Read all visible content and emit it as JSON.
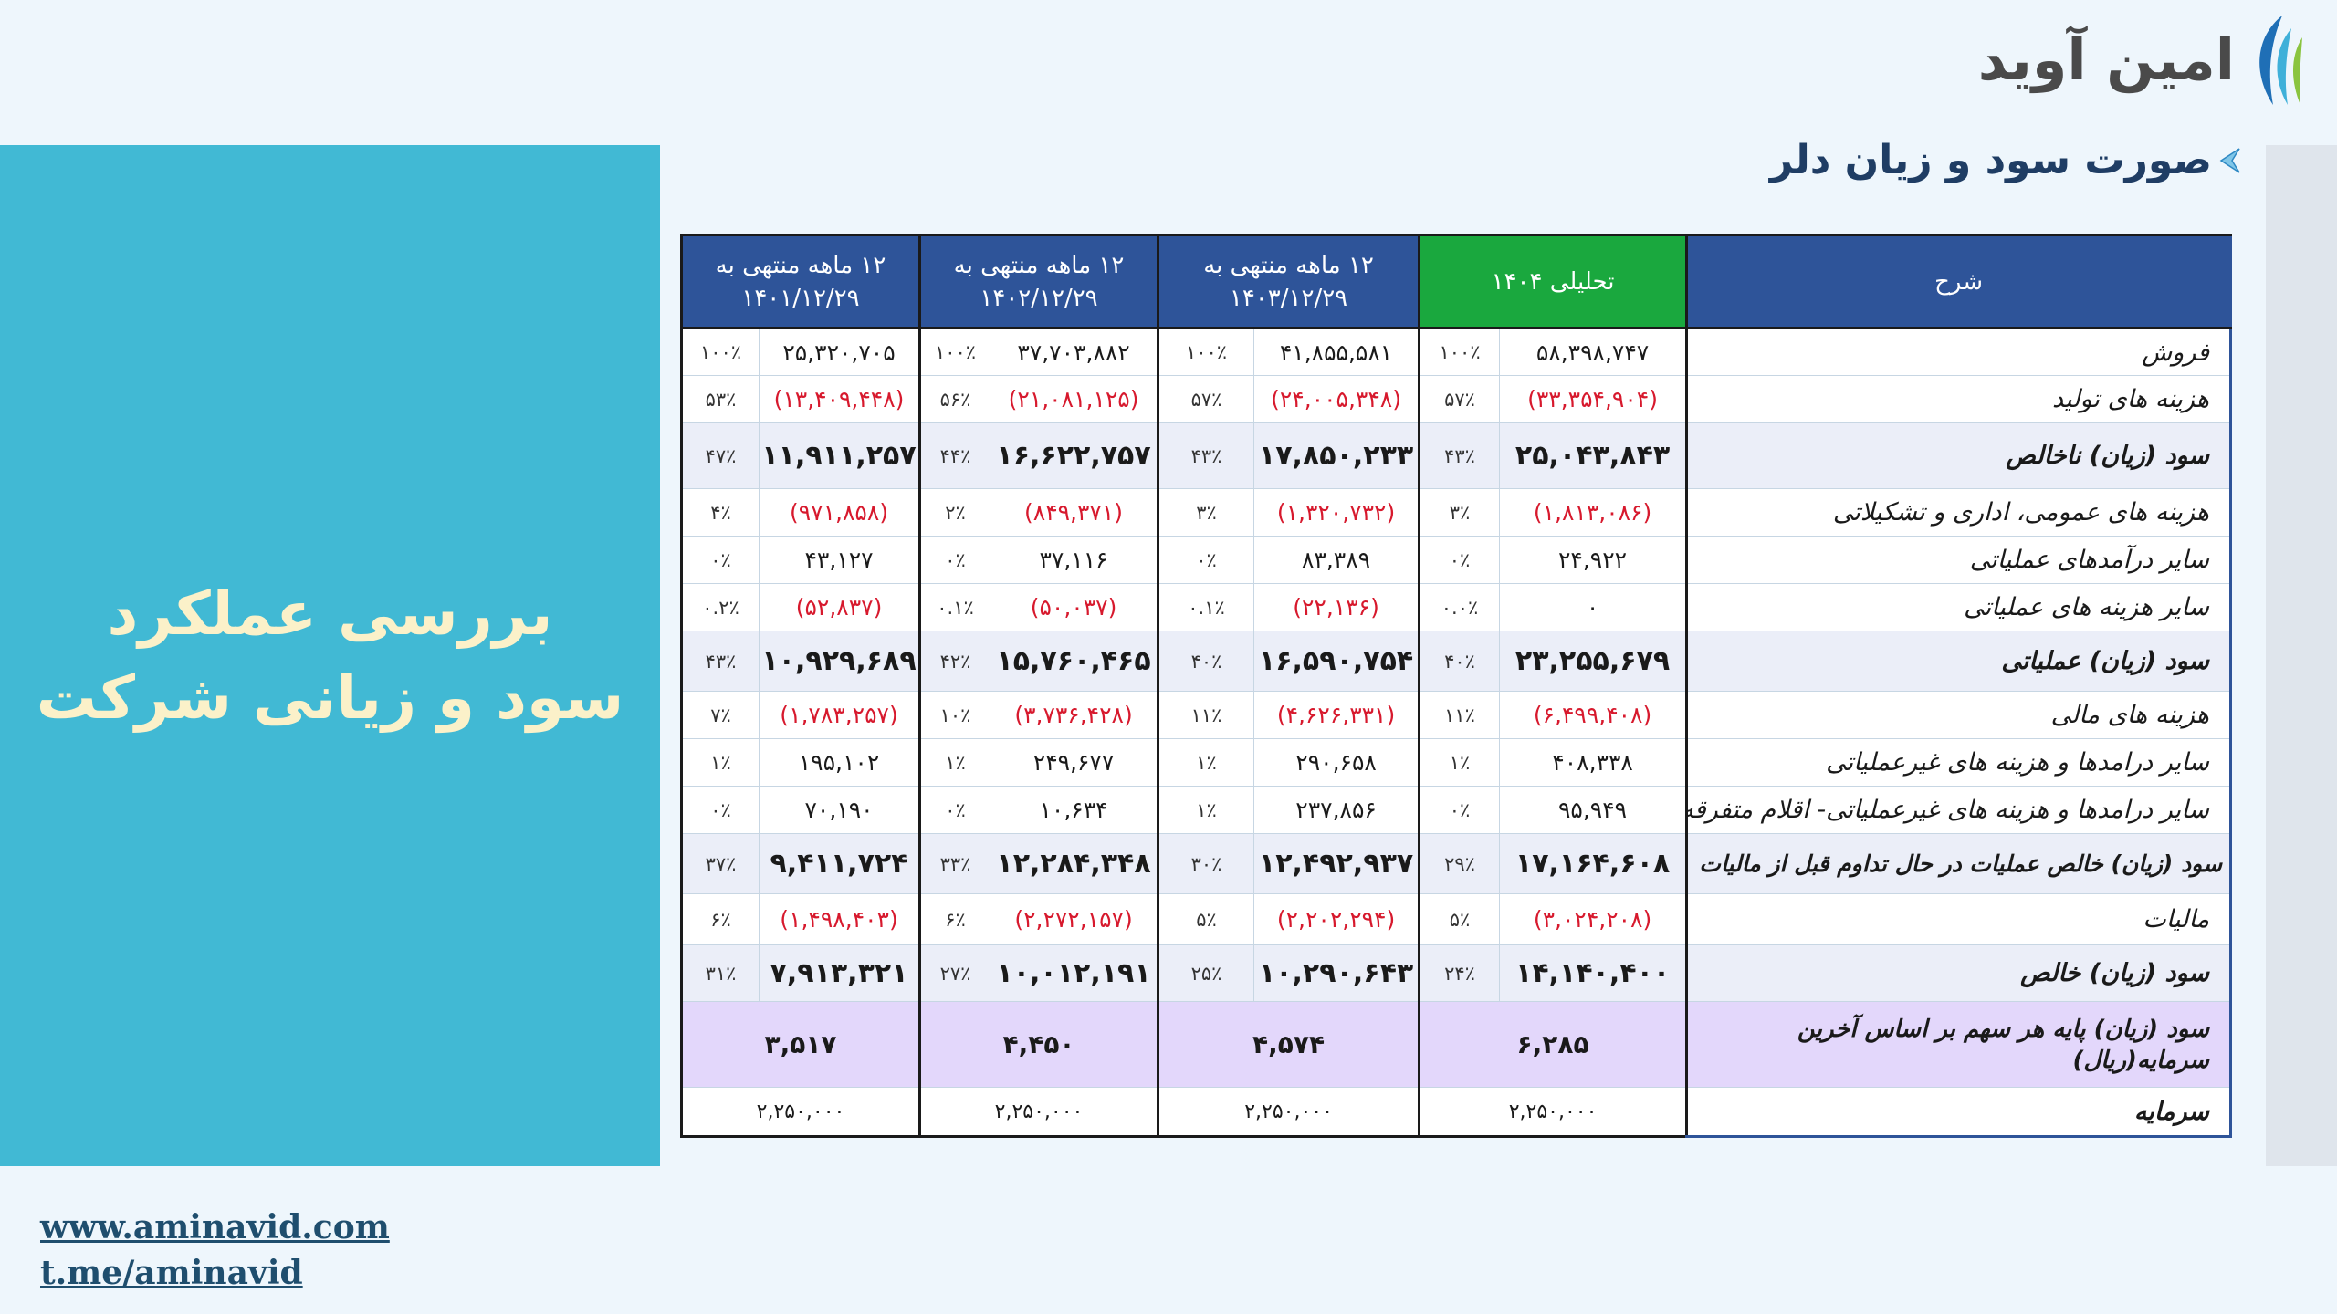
{
  "logo": {
    "text": "امین آوید"
  },
  "left_panel": {
    "line1": "بررسی عملکرد",
    "line2": "سود و زیانی شرکت"
  },
  "section": {
    "title": "صورت سود و زیان دلر"
  },
  "table": {
    "headers": {
      "desc": "شرح",
      "col1": "تحلیلی ۱۴۰۴",
      "col2": "۱۲ ماهه منتهی به ۱۴۰۳/۱۲/۲۹",
      "col3": "۱۲ ماهه منتهی به ۱۴۰۲/۱۲/۲۹",
      "col4": "۱۲ ماهه منتهی به ۱۴۰۱/۱۲/۲۹"
    },
    "rows": [
      {
        "label": "فروش",
        "c1v": "۵۸,۳۹۸,۷۴۷",
        "c1p": "۱۰۰٪",
        "c2v": "۴۱,۸۵۵,۵۸۱",
        "c2p": "۱۰۰٪",
        "c3v": "۳۷,۷۰۳,۸۸۲",
        "c3p": "۱۰۰٪",
        "c4v": "۲۵,۳۲۰,۷۰۵",
        "c4p": "۱۰۰٪"
      },
      {
        "label": "هزینه های تولید",
        "c1v": "(۳۳,۳۵۴,۹۰۴)",
        "c1p": "۵۷٪",
        "c2v": "(۲۴,۰۰۵,۳۴۸)",
        "c2p": "۵۷٪",
        "c3v": "(۲۱,۰۸۱,۱۲۵)",
        "c3p": "۵۶٪",
        "c4v": "(۱۳,۴۰۹,۴۴۸)",
        "c4p": "۵۳٪"
      },
      {
        "label": "سود (زیان) ناخالص",
        "c1v": "۲۵,۰۴۳,۸۴۳",
        "c1p": "۴۳٪",
        "c2v": "۱۷,۸۵۰,۲۳۳",
        "c2p": "۴۳٪",
        "c3v": "۱۶,۶۲۲,۷۵۷",
        "c3p": "۴۴٪",
        "c4v": "۱۱,۹۱۱,۲۵۷",
        "c4p": "۴۷٪"
      },
      {
        "label": "هزینه های عمومی، اداری و تشکیلاتی",
        "c1v": "(۱,۸۱۳,۰۸۶)",
        "c1p": "۳٪",
        "c2v": "(۱,۳۲۰,۷۳۲)",
        "c2p": "۳٪",
        "c3v": "(۸۴۹,۳۷۱)",
        "c3p": "۲٪",
        "c4v": "(۹۷۱,۸۵۸)",
        "c4p": "۴٪"
      },
      {
        "label": "سایر درآمدهای عملیاتی",
        "c1v": "۲۴,۹۲۲",
        "c1p": "۰٪",
        "c2v": "۸۳,۳۸۹",
        "c2p": "۰٪",
        "c3v": "۳۷,۱۱۶",
        "c3p": "۰٪",
        "c4v": "۴۳,۱۲۷",
        "c4p": "۰٪"
      },
      {
        "label": "سایر هزینه های عملیاتی",
        "c1v": "۰",
        "c1p": "۰.۰٪",
        "c2v": "(۲۲,۱۳۶)",
        "c2p": "۰.۱٪",
        "c3v": "(۵۰,۰۳۷)",
        "c3p": "۰.۱٪",
        "c4v": "(۵۲,۸۳۷)",
        "c4p": "۰.۲٪"
      },
      {
        "label": "سود (زیان) عملیاتی",
        "c1v": "۲۳,۲۵۵,۶۷۹",
        "c1p": "۴۰٪",
        "c2v": "۱۶,۵۹۰,۷۵۴",
        "c2p": "۴۰٪",
        "c3v": "۱۵,۷۶۰,۴۶۵",
        "c3p": "۴۲٪",
        "c4v": "۱۰,۹۲۹,۶۸۹",
        "c4p": "۴۳٪"
      },
      {
        "label": "هزینه های مالی",
        "c1v": "(۶,۴۹۹,۴۰۸)",
        "c1p": "۱۱٪",
        "c2v": "(۴,۶۲۶,۳۳۱)",
        "c2p": "۱۱٪",
        "c3v": "(۳,۷۳۶,۴۲۸)",
        "c3p": "۱۰٪",
        "c4v": "(۱,۷۸۳,۲۵۷)",
        "c4p": "۷٪"
      },
      {
        "label": "سایر درامدها و هزینه های غیرعملیاتی",
        "c1v": "۴۰۸,۳۳۸",
        "c1p": "۱٪",
        "c2v": "۲۹۰,۶۵۸",
        "c2p": "۱٪",
        "c3v": "۲۴۹,۶۷۷",
        "c3p": "۱٪",
        "c4v": "۱۹۵,۱۰۲",
        "c4p": "۱٪"
      },
      {
        "label": "سایر درامدها و هزینه های غیرعملیاتی- اقلام متفرقه",
        "c1v": "۹۵,۹۴۹",
        "c1p": "۰٪",
        "c2v": "۲۳۷,۸۵۶",
        "c2p": "۱٪",
        "c3v": "۱۰,۶۳۴",
        "c3p": "۰٪",
        "c4v": "۷۰,۱۹۰",
        "c4p": "۰٪"
      },
      {
        "label": "سود (زیان) خالص عملیات در حال تداوم قبل از مالیات",
        "c1v": "۱۷,۱۶۴,۶۰۸",
        "c1p": "۲۹٪",
        "c2v": "۱۲,۴۹۲,۹۳۷",
        "c2p": "۳۰٪",
        "c3v": "۱۲,۲۸۴,۳۴۸",
        "c3p": "۳۳٪",
        "c4v": "۹,۴۱۱,۷۲۴",
        "c4p": "۳۷٪"
      },
      {
        "label": "مالیات",
        "c1v": "(۳,۰۲۴,۲۰۸)",
        "c1p": "۵٪",
        "c2v": "(۲,۲۰۲,۲۹۴)",
        "c2p": "۵٪",
        "c3v": "(۲,۲۷۲,۱۵۷)",
        "c3p": "۶٪",
        "c4v": "(۱,۴۹۸,۴۰۳)",
        "c4p": "۶٪"
      },
      {
        "label": "سود (زیان) خالص",
        "c1v": "۱۴,۱۴۰,۴۰۰",
        "c1p": "۲۴٪",
        "c2v": "۱۰,۲۹۰,۶۴۳",
        "c2p": "۲۵٪",
        "c3v": "۱۰,۰۱۲,۱۹۱",
        "c3p": "۲۷٪",
        "c4v": "۷,۹۱۳,۳۲۱",
        "c4p": "۳۱٪"
      }
    ],
    "eps": {
      "label": "سود (زیان)  پایه هر سهم بر اساس آخرین سرمایه(ریال)",
      "c1": "۶,۲۸۵",
      "c2": "۴,۵۷۴",
      "c3": "۴,۴۵۰",
      "c4": "۳,۵۱۷"
    },
    "capital": {
      "label": "سرمایه",
      "c1": "۲,۲۵۰,۰۰۰",
      "c2": "۲,۲۵۰,۰۰۰",
      "c3": "۲,۲۵۰,۰۰۰",
      "c4": "۲,۲۵۰,۰۰۰"
    }
  },
  "links": {
    "website": "www.aminavid.com ",
    "telegram": "t.me/aminavid"
  },
  "colors": {
    "header_blue": "#2e5499",
    "header_green": "#1aa83e",
    "panel": "#41b9d4",
    "negative": "#d7192d"
  }
}
